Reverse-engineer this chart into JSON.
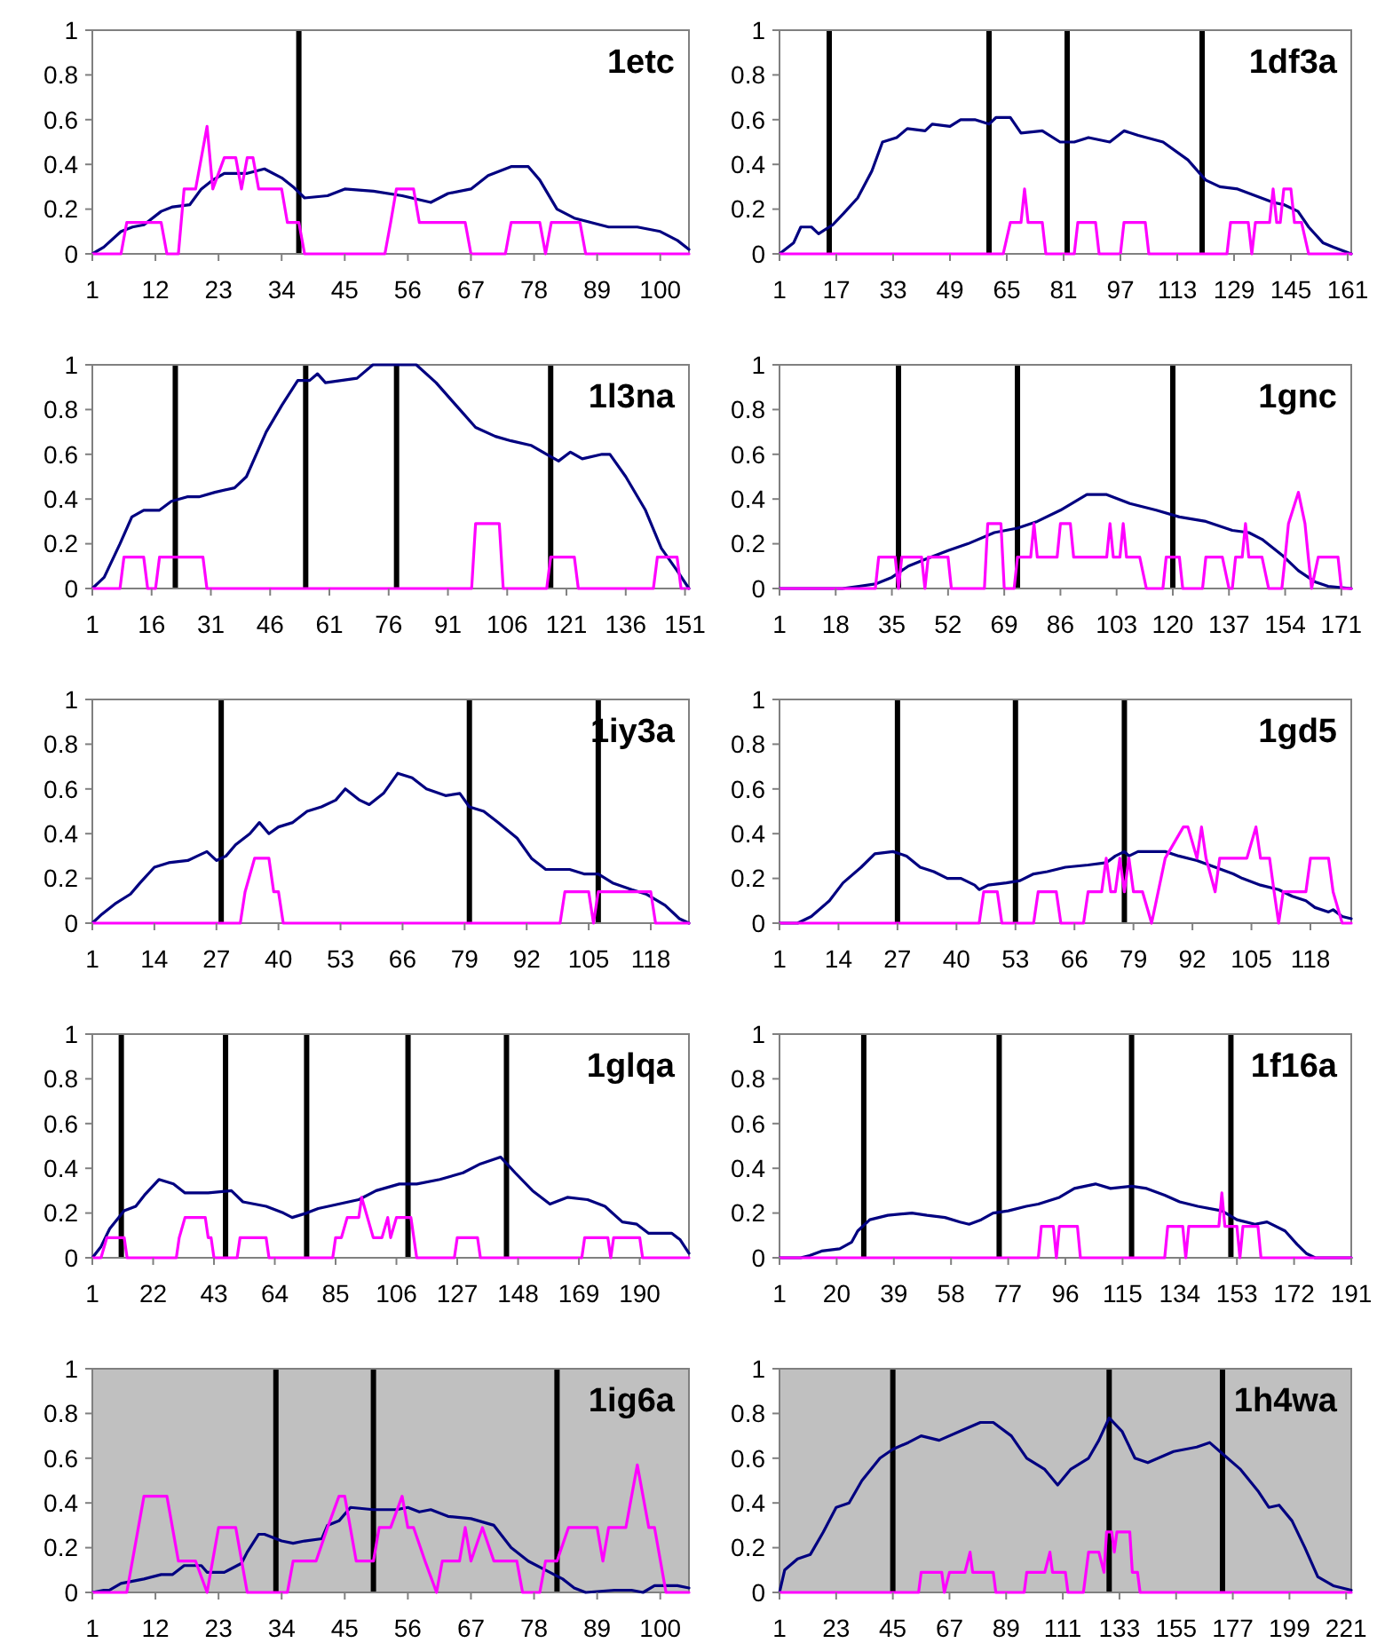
{
  "chart_data": [
    {
      "type": "line",
      "title": "1etc",
      "xlim": [
        1,
        105
      ],
      "xticks": [
        1,
        12,
        23,
        34,
        45,
        56,
        67,
        78,
        89,
        100
      ],
      "ylim": [
        0,
        1
      ],
      "yticks": [
        0,
        0.2,
        0.4,
        0.6,
        0.8,
        1
      ],
      "ref_lines": [
        {
          "axis": "x",
          "value": 37,
          "color": "#000000"
        }
      ],
      "series": [
        {
          "color": "#000080",
          "x": [
            1,
            3,
            6,
            8,
            10,
            13,
            15,
            18,
            20,
            22,
            24,
            28,
            31,
            34,
            36,
            38,
            42,
            45,
            50,
            55,
            60,
            63,
            67,
            70,
            74,
            77,
            79,
            82,
            85,
            88,
            91,
            96,
            100,
            103,
            105
          ],
          "values": [
            0,
            0.03,
            0.1,
            0.12,
            0.13,
            0.19,
            0.21,
            0.22,
            0.29,
            0.33,
            0.36,
            0.36,
            0.38,
            0.34,
            0.3,
            0.25,
            0.26,
            0.29,
            0.28,
            0.26,
            0.23,
            0.27,
            0.29,
            0.35,
            0.39,
            0.39,
            0.33,
            0.2,
            0.16,
            0.14,
            0.12,
            0.12,
            0.1,
            0.06,
            0.02
          ]
        },
        {
          "color": "#ff00ff",
          "x": [
            1,
            6,
            7,
            13,
            14,
            16,
            17,
            19,
            21,
            22,
            24,
            26,
            27,
            28,
            29,
            30,
            34,
            35,
            37,
            38,
            52,
            53,
            54,
            57,
            58,
            66,
            67,
            73,
            74,
            79,
            80,
            81,
            86,
            87,
            105
          ],
          "values": [
            0,
            0,
            0.14,
            0.14,
            0,
            0,
            0.29,
            0.29,
            0.57,
            0.29,
            0.43,
            0.43,
            0.29,
            0.43,
            0.43,
            0.29,
            0.29,
            0.14,
            0.14,
            0,
            0,
            0.14,
            0.29,
            0.29,
            0.14,
            0.14,
            0,
            0,
            0.14,
            0.14,
            0,
            0.14,
            0.14,
            0,
            0
          ]
        }
      ]
    },
    {
      "type": "line",
      "title": "1df3a",
      "xlim": [
        1,
        162
      ],
      "xticks": [
        1,
        17,
        33,
        49,
        65,
        81,
        97,
        113,
        129,
        145,
        161
      ],
      "ylim": [
        0,
        1
      ],
      "yticks": [
        0,
        0.2,
        0.4,
        0.6,
        0.8,
        1
      ],
      "ref_lines": [
        {
          "axis": "x",
          "value": 15,
          "color": "#000000"
        },
        {
          "axis": "x",
          "value": 60,
          "color": "#000000"
        },
        {
          "axis": "x",
          "value": 82,
          "color": "#000000"
        },
        {
          "axis": "x",
          "value": 120,
          "color": "#000000"
        }
      ],
      "series": [
        {
          "color": "#000080",
          "x": [
            1,
            5,
            7,
            10,
            12,
            16,
            19,
            23,
            27,
            30,
            34,
            37,
            42,
            44,
            49,
            52,
            56,
            60,
            62,
            66,
            69,
            75,
            80,
            84,
            88,
            94,
            98,
            102,
            109,
            116,
            121,
            125,
            130,
            135,
            140,
            143,
            147,
            150,
            154,
            157,
            162
          ],
          "values": [
            0,
            0.05,
            0.12,
            0.12,
            0.09,
            0.13,
            0.18,
            0.25,
            0.37,
            0.5,
            0.52,
            0.56,
            0.55,
            0.58,
            0.57,
            0.6,
            0.6,
            0.58,
            0.61,
            0.61,
            0.54,
            0.55,
            0.5,
            0.5,
            0.52,
            0.5,
            0.55,
            0.53,
            0.5,
            0.42,
            0.33,
            0.3,
            0.29,
            0.26,
            0.23,
            0.22,
            0.19,
            0.12,
            0.05,
            0.03,
            0
          ]
        },
        {
          "color": "#ff00ff",
          "x": [
            1,
            64,
            66,
            69,
            70,
            71,
            75,
            76,
            84,
            85,
            90,
            91,
            97,
            98,
            104,
            105,
            127,
            128,
            133,
            134,
            135,
            139,
            140,
            141,
            142,
            143,
            145,
            146,
            148,
            150,
            162
          ],
          "values": [
            0,
            0,
            0.14,
            0.14,
            0.29,
            0.14,
            0.14,
            0,
            0,
            0.14,
            0.14,
            0,
            0,
            0.14,
            0.14,
            0,
            0,
            0.14,
            0.14,
            0,
            0.14,
            0.14,
            0.29,
            0.14,
            0.14,
            0.29,
            0.29,
            0.14,
            0.14,
            0,
            0
          ]
        }
      ]
    },
    {
      "type": "line",
      "title": "1l3na",
      "xlim": [
        1,
        152
      ],
      "xticks": [
        1,
        16,
        31,
        46,
        61,
        76,
        91,
        106,
        121,
        136,
        151
      ],
      "ylim": [
        0,
        1
      ],
      "yticks": [
        0,
        0.2,
        0.4,
        0.6,
        0.8,
        1
      ],
      "ref_lines": [
        {
          "axis": "x",
          "value": 22,
          "color": "#000000"
        },
        {
          "axis": "x",
          "value": 55,
          "color": "#000000"
        },
        {
          "axis": "x",
          "value": 78,
          "color": "#000000"
        },
        {
          "axis": "x",
          "value": 117,
          "color": "#000000"
        }
      ],
      "series": [
        {
          "color": "#000080",
          "x": [
            1,
            4,
            8,
            11,
            14,
            18,
            21,
            25,
            28,
            32,
            37,
            40,
            45,
            49,
            53,
            56,
            58,
            60,
            64,
            68,
            72,
            83,
            88,
            94,
            98,
            103,
            107,
            112,
            116,
            119,
            122,
            125,
            130,
            132,
            136,
            141,
            145,
            149,
            152
          ],
          "values": [
            0,
            0.05,
            0.2,
            0.32,
            0.35,
            0.35,
            0.39,
            0.41,
            0.41,
            0.43,
            0.45,
            0.5,
            0.7,
            0.82,
            0.93,
            0.93,
            0.96,
            0.92,
            0.93,
            0.94,
            1,
            1,
            0.92,
            0.8,
            0.72,
            0.68,
            0.66,
            0.64,
            0.6,
            0.57,
            0.61,
            0.58,
            0.6,
            0.6,
            0.5,
            0.35,
            0.18,
            0.08,
            0
          ]
        },
        {
          "color": "#ff00ff",
          "x": [
            1,
            8,
            9,
            14,
            15,
            17,
            18,
            29,
            30,
            97,
            98,
            104,
            105,
            116,
            117,
            123,
            124,
            143,
            144,
            149,
            150,
            152
          ],
          "values": [
            0,
            0,
            0.14,
            0.14,
            0,
            0,
            0.14,
            0.14,
            0,
            0,
            0.29,
            0.29,
            0,
            0,
            0.14,
            0.14,
            0,
            0,
            0.14,
            0.14,
            0,
            0
          ]
        }
      ]
    },
    {
      "type": "line",
      "title": "1gnc",
      "xlim": [
        1,
        174
      ],
      "xticks": [
        1,
        18,
        35,
        52,
        69,
        86,
        103,
        120,
        137,
        154,
        171
      ],
      "ylim": [
        0,
        1
      ],
      "yticks": [
        0,
        0.2,
        0.4,
        0.6,
        0.8,
        1
      ],
      "ref_lines": [
        {
          "axis": "x",
          "value": 37,
          "color": "#000000"
        },
        {
          "axis": "x",
          "value": 73,
          "color": "#000000"
        },
        {
          "axis": "x",
          "value": 120,
          "color": "#000000"
        }
      ],
      "series": [
        {
          "color": "#000080",
          "x": [
            1,
            20,
            25,
            30,
            35,
            40,
            45,
            52,
            58,
            66,
            73,
            79,
            86,
            94,
            100,
            107,
            115,
            122,
            130,
            138,
            143,
            147,
            153,
            158,
            163,
            167,
            174
          ],
          "values": [
            0,
            0,
            0.01,
            0.02,
            0.05,
            0.1,
            0.13,
            0.17,
            0.2,
            0.25,
            0.27,
            0.3,
            0.35,
            0.42,
            0.42,
            0.38,
            0.35,
            0.32,
            0.3,
            0.26,
            0.25,
            0.22,
            0.15,
            0.08,
            0.03,
            0.01,
            0
          ]
        },
        {
          "color": "#ff00ff",
          "x": [
            1,
            30,
            31,
            36,
            37,
            38,
            44,
            45,
            46,
            52,
            53,
            63,
            64,
            68,
            69,
            72,
            73,
            77,
            78,
            79,
            85,
            86,
            89,
            90,
            100,
            101,
            102,
            104,
            105,
            106,
            110,
            112,
            117,
            118,
            122,
            123,
            129,
            130,
            135,
            137,
            138,
            139,
            141,
            142,
            143,
            147,
            149,
            153,
            154,
            155,
            158,
            160,
            161,
            162,
            164,
            170,
            171,
            174
          ],
          "values": [
            0,
            0,
            0.14,
            0.14,
            0,
            0.14,
            0.14,
            0,
            0.14,
            0.14,
            0,
            0,
            0.29,
            0.29,
            0,
            0,
            0.14,
            0.14,
            0.29,
            0.14,
            0.14,
            0.29,
            0.29,
            0.14,
            0.14,
            0.29,
            0.14,
            0.14,
            0.29,
            0.14,
            0.14,
            0,
            0,
            0.14,
            0.14,
            0,
            0,
            0.14,
            0.14,
            0,
            0,
            0.14,
            0.14,
            0.29,
            0.14,
            0.14,
            0,
            0,
            0.14,
            0.29,
            0.43,
            0.29,
            0.14,
            0,
            0.14,
            0.14,
            0,
            0
          ]
        }
      ]
    },
    {
      "type": "line",
      "title": "1iy3a",
      "xlim": [
        1,
        126
      ],
      "xticks": [
        1,
        14,
        27,
        40,
        53,
        66,
        79,
        92,
        105,
        118
      ],
      "ylim": [
        0,
        1
      ],
      "yticks": [
        0,
        0.2,
        0.4,
        0.6,
        0.8,
        1
      ],
      "ref_lines": [
        {
          "axis": "x",
          "value": 28,
          "color": "#000000"
        },
        {
          "axis": "x",
          "value": 80,
          "color": "#000000"
        },
        {
          "axis": "x",
          "value": 107,
          "color": "#000000"
        }
      ],
      "series": [
        {
          "color": "#000080",
          "x": [
            1,
            3,
            6,
            9,
            11,
            14,
            17,
            21,
            23,
            25,
            27,
            29,
            31,
            34,
            36,
            38,
            40,
            43,
            46,
            49,
            52,
            54,
            57,
            59,
            62,
            65,
            68,
            71,
            75,
            78,
            80,
            83,
            86,
            90,
            93,
            96,
            101,
            104,
            107,
            110,
            114,
            117,
            121,
            124,
            126
          ],
          "values": [
            0,
            0.04,
            0.09,
            0.13,
            0.18,
            0.25,
            0.27,
            0.28,
            0.3,
            0.32,
            0.28,
            0.3,
            0.35,
            0.4,
            0.45,
            0.4,
            0.43,
            0.45,
            0.5,
            0.52,
            0.55,
            0.6,
            0.55,
            0.53,
            0.58,
            0.67,
            0.65,
            0.6,
            0.57,
            0.58,
            0.52,
            0.5,
            0.45,
            0.38,
            0.29,
            0.24,
            0.24,
            0.22,
            0.22,
            0.18,
            0.15,
            0.13,
            0.08,
            0.02,
            0
          ]
        },
        {
          "color": "#ff00ff",
          "x": [
            1,
            32,
            33,
            35,
            38,
            39,
            40,
            41,
            99,
            100,
            105,
            106,
            107,
            118,
            119,
            126
          ],
          "values": [
            0,
            0,
            0.14,
            0.29,
            0.29,
            0.14,
            0.14,
            0,
            0,
            0.14,
            0.14,
            0,
            0.14,
            0.14,
            0,
            0
          ]
        }
      ]
    },
    {
      "type": "line",
      "title": "1gd5",
      "xlim": [
        1,
        127
      ],
      "xticks": [
        1,
        14,
        27,
        40,
        53,
        66,
        79,
        92,
        105,
        118
      ],
      "ylim": [
        0,
        1
      ],
      "yticks": [
        0,
        0.2,
        0.4,
        0.6,
        0.8,
        1
      ],
      "ref_lines": [
        {
          "axis": "x",
          "value": 27,
          "color": "#000000"
        },
        {
          "axis": "x",
          "value": 53,
          "color": "#000000"
        },
        {
          "axis": "x",
          "value": 77,
          "color": "#000000"
        }
      ],
      "series": [
        {
          "color": "#000080",
          "x": [
            1,
            5,
            8,
            12,
            15,
            19,
            22,
            26,
            29,
            32,
            35,
            38,
            41,
            44,
            45,
            47,
            51,
            54,
            57,
            60,
            64,
            69,
            73,
            75,
            77,
            78,
            80,
            86,
            89,
            93,
            97,
            101,
            103,
            107,
            111,
            114,
            117,
            119,
            122,
            123,
            125,
            127
          ],
          "values": [
            0,
            0,
            0.03,
            0.1,
            0.18,
            0.25,
            0.31,
            0.32,
            0.3,
            0.25,
            0.23,
            0.2,
            0.2,
            0.17,
            0.15,
            0.17,
            0.18,
            0.19,
            0.22,
            0.23,
            0.25,
            0.26,
            0.27,
            0.3,
            0.32,
            0.3,
            0.32,
            0.32,
            0.3,
            0.28,
            0.25,
            0.22,
            0.2,
            0.17,
            0.15,
            0.12,
            0.1,
            0.07,
            0.05,
            0.06,
            0.03,
            0.02
          ]
        },
        {
          "color": "#ff00ff",
          "x": [
            1,
            45,
            46,
            49,
            50,
            57,
            58,
            62,
            63,
            68,
            69,
            72,
            73,
            74,
            75,
            76,
            77,
            78,
            79,
            81,
            83,
            86,
            90,
            91,
            93,
            94,
            95,
            97,
            98,
            104,
            106,
            107,
            109,
            110,
            111,
            112,
            117,
            118,
            122,
            123,
            125,
            127
          ],
          "values": [
            0,
            0,
            0.14,
            0.14,
            0,
            0,
            0.14,
            0.14,
            0,
            0,
            0.14,
            0.14,
            0.29,
            0.14,
            0.14,
            0.29,
            0.14,
            0.29,
            0.14,
            0.14,
            0,
            0.29,
            0.43,
            0.43,
            0.29,
            0.43,
            0.29,
            0.14,
            0.29,
            0.29,
            0.43,
            0.29,
            0.29,
            0.14,
            0,
            0.14,
            0.14,
            0.29,
            0.29,
            0.14,
            0,
            0
          ]
        }
      ]
    },
    {
      "type": "line",
      "title": "1glqa",
      "xlim": [
        1,
        207
      ],
      "xticks": [
        1,
        22,
        43,
        64,
        85,
        106,
        127,
        148,
        169,
        190
      ],
      "ylim": [
        0,
        1
      ],
      "yticks": [
        0,
        0.2,
        0.4,
        0.6,
        0.8,
        1
      ],
      "ref_lines": [
        {
          "axis": "x",
          "value": 11,
          "color": "#000000"
        },
        {
          "axis": "x",
          "value": 47,
          "color": "#000000"
        },
        {
          "axis": "x",
          "value": 75,
          "color": "#000000"
        },
        {
          "axis": "x",
          "value": 110,
          "color": "#000000"
        },
        {
          "axis": "x",
          "value": 144,
          "color": "#000000"
        }
      ],
      "series": [
        {
          "color": "#000080",
          "x": [
            1,
            4,
            7,
            12,
            16,
            19,
            24,
            29,
            33,
            41,
            49,
            53,
            61,
            67,
            70,
            75,
            79,
            86,
            93,
            99,
            107,
            113,
            121,
            129,
            135,
            142,
            147,
            153,
            159,
            165,
            172,
            178,
            184,
            189,
            193,
            201,
            204,
            207
          ],
          "values": [
            0,
            0.05,
            0.13,
            0.21,
            0.23,
            0.28,
            0.35,
            0.33,
            0.29,
            0.29,
            0.3,
            0.25,
            0.23,
            0.2,
            0.18,
            0.2,
            0.22,
            0.24,
            0.26,
            0.3,
            0.33,
            0.33,
            0.35,
            0.38,
            0.42,
            0.45,
            0.38,
            0.3,
            0.24,
            0.27,
            0.26,
            0.23,
            0.16,
            0.15,
            0.11,
            0.11,
            0.08,
            0.02
          ]
        },
        {
          "color": "#ff00ff",
          "x": [
            1,
            4,
            6,
            12,
            13,
            30,
            31,
            33,
            40,
            41,
            42,
            43,
            51,
            52,
            61,
            62,
            84,
            85,
            87,
            89,
            93,
            94,
            96,
            98,
            101,
            103,
            104,
            106,
            111,
            113,
            126,
            127,
            134,
            135,
            170,
            171,
            179,
            180,
            181,
            190,
            191,
            207
          ],
          "values": [
            0,
            0,
            0.09,
            0.09,
            0,
            0,
            0.09,
            0.18,
            0.18,
            0.09,
            0.09,
            0,
            0,
            0.09,
            0.09,
            0,
            0,
            0.09,
            0.09,
            0.18,
            0.18,
            0.27,
            0.18,
            0.09,
            0.09,
            0.18,
            0.09,
            0.18,
            0.18,
            0,
            0,
            0.09,
            0.09,
            0,
            0,
            0.09,
            0.09,
            0,
            0.09,
            0.09,
            0,
            0
          ]
        }
      ]
    },
    {
      "type": "line",
      "title": "1f16a",
      "xlim": [
        1,
        191
      ],
      "xticks": [
        1,
        20,
        39,
        58,
        77,
        96,
        115,
        134,
        153,
        172,
        191
      ],
      "ylim": [
        0,
        1
      ],
      "yticks": [
        0,
        0.2,
        0.4,
        0.6,
        0.8,
        1
      ],
      "ref_lines": [
        {
          "axis": "x",
          "value": 29,
          "color": "#000000"
        },
        {
          "axis": "x",
          "value": 74,
          "color": "#000000"
        },
        {
          "axis": "x",
          "value": 118,
          "color": "#000000"
        },
        {
          "axis": "x",
          "value": 151,
          "color": "#000000"
        }
      ],
      "series": [
        {
          "color": "#000080",
          "x": [
            1,
            8,
            11,
            15,
            21,
            25,
            27,
            31,
            37,
            45,
            50,
            56,
            61,
            64,
            68,
            72,
            77,
            83,
            87,
            94,
            99,
            106,
            111,
            118,
            123,
            129,
            134,
            140,
            148,
            153,
            159,
            163,
            169,
            173,
            176,
            179,
            191
          ],
          "values": [
            0,
            0,
            0.01,
            0.03,
            0.04,
            0.07,
            0.12,
            0.17,
            0.19,
            0.2,
            0.19,
            0.18,
            0.16,
            0.15,
            0.17,
            0.2,
            0.21,
            0.23,
            0.24,
            0.27,
            0.31,
            0.33,
            0.31,
            0.32,
            0.31,
            0.28,
            0.25,
            0.23,
            0.21,
            0.17,
            0.15,
            0.16,
            0.12,
            0.06,
            0.02,
            0,
            0
          ]
        },
        {
          "color": "#ff00ff",
          "x": [
            1,
            87,
            88,
            92,
            93,
            94,
            100,
            101,
            129,
            130,
            135,
            136,
            137,
            147,
            148,
            149,
            153,
            154,
            155,
            160,
            161,
            191
          ],
          "values": [
            0,
            0,
            0.14,
            0.14,
            0,
            0.14,
            0.14,
            0,
            0,
            0.14,
            0.14,
            0,
            0.14,
            0.14,
            0.29,
            0.14,
            0.14,
            0,
            0.14,
            0.14,
            0,
            0
          ]
        }
      ]
    },
    {
      "type": "line",
      "title": "1ig6a",
      "xlim": [
        1,
        105
      ],
      "xticks": [
        1,
        12,
        23,
        34,
        45,
        56,
        67,
        78,
        89,
        100
      ],
      "ylim": [
        0,
        1
      ],
      "yticks": [
        0,
        0.2,
        0.4,
        0.6,
        0.8,
        1
      ],
      "bands": [
        {
          "axis": "x",
          "from": 1,
          "to": 105,
          "color": "#c0c0c0"
        }
      ],
      "ref_lines": [
        {
          "axis": "x",
          "value": 33,
          "color": "#000000"
        },
        {
          "axis": "x",
          "value": 50,
          "color": "#000000"
        },
        {
          "axis": "x",
          "value": 82,
          "color": "#000000"
        }
      ],
      "series": [
        {
          "color": "#000080",
          "x": [
            1,
            3,
            4,
            6,
            8,
            10,
            13,
            15,
            17,
            20,
            21,
            24,
            27,
            28,
            30,
            31,
            34,
            36,
            38,
            41,
            42,
            44,
            46,
            50,
            54,
            56,
            58,
            60,
            63,
            67,
            71,
            74,
            77,
            80,
            83,
            85,
            87,
            92,
            95,
            97,
            99,
            103,
            105
          ],
          "values": [
            0,
            0.01,
            0.01,
            0.04,
            0.05,
            0.06,
            0.08,
            0.08,
            0.12,
            0.12,
            0.09,
            0.09,
            0.13,
            0.18,
            0.26,
            0.26,
            0.23,
            0.22,
            0.23,
            0.24,
            0.3,
            0.32,
            0.38,
            0.37,
            0.37,
            0.38,
            0.36,
            0.37,
            0.34,
            0.33,
            0.3,
            0.2,
            0.14,
            0.1,
            0.06,
            0.02,
            0,
            0.01,
            0.01,
            0,
            0.03,
            0.03,
            0.02
          ]
        },
        {
          "color": "#ff00ff",
          "x": [
            1,
            7,
            10,
            14,
            16,
            19,
            21,
            23,
            26,
            28,
            35,
            36,
            40,
            42,
            44,
            45,
            47,
            50,
            51,
            53,
            55,
            56,
            57,
            59,
            61,
            62,
            65,
            66,
            67,
            69,
            71,
            75,
            76,
            79,
            80,
            82,
            84,
            89,
            90,
            91,
            94,
            96,
            98,
            99,
            101,
            105
          ],
          "values": [
            0,
            0,
            0.43,
            0.43,
            0.14,
            0.14,
            0,
            0.29,
            0.29,
            0,
            0,
            0.14,
            0.14,
            0.29,
            0.43,
            0.43,
            0.14,
            0.14,
            0.29,
            0.29,
            0.43,
            0.29,
            0.29,
            0.14,
            0,
            0.14,
            0.14,
            0.29,
            0.14,
            0.29,
            0.14,
            0.14,
            0,
            0,
            0.14,
            0.14,
            0.29,
            0.29,
            0.14,
            0.29,
            0.29,
            0.57,
            0.29,
            0.29,
            0,
            0
          ]
        }
      ]
    },
    {
      "type": "line",
      "title": "1h4wa",
      "xlim": [
        1,
        223
      ],
      "xticks": [
        1,
        23,
        45,
        67,
        89,
        111,
        133,
        155,
        177,
        199,
        221
      ],
      "ylim": [
        0,
        1
      ],
      "yticks": [
        0,
        0.2,
        0.4,
        0.6,
        0.8,
        1
      ],
      "bands": [
        {
          "axis": "x",
          "from": 1,
          "to": 223,
          "color": "#c0c0c0"
        }
      ],
      "ref_lines": [
        {
          "axis": "x",
          "value": 45,
          "color": "#000000"
        },
        {
          "axis": "x",
          "value": 129,
          "color": "#000000"
        },
        {
          "axis": "x",
          "value": 173,
          "color": "#000000"
        }
      ],
      "series": [
        {
          "color": "#000080",
          "x": [
            1,
            3,
            8,
            13,
            18,
            23,
            28,
            33,
            40,
            45,
            51,
            56,
            63,
            71,
            79,
            84,
            91,
            97,
            104,
            109,
            114,
            121,
            125,
            129,
            134,
            139,
            144,
            154,
            163,
            168,
            173,
            180,
            187,
            191,
            195,
            200,
            205,
            210,
            216,
            223
          ],
          "values": [
            0,
            0.1,
            0.15,
            0.17,
            0.27,
            0.38,
            0.4,
            0.5,
            0.6,
            0.64,
            0.67,
            0.7,
            0.68,
            0.72,
            0.76,
            0.76,
            0.7,
            0.6,
            0.55,
            0.48,
            0.55,
            0.6,
            0.68,
            0.78,
            0.72,
            0.6,
            0.58,
            0.63,
            0.65,
            0.67,
            0.62,
            0.55,
            0.45,
            0.38,
            0.39,
            0.32,
            0.2,
            0.07,
            0.03,
            0.01
          ]
        },
        {
          "color": "#ff00ff",
          "x": [
            1,
            55,
            56,
            64,
            65,
            67,
            73,
            75,
            76,
            84,
            85,
            96,
            97,
            104,
            106,
            107,
            112,
            113,
            119,
            120,
            121,
            125,
            127,
            128,
            130,
            131,
            132,
            137,
            138,
            140,
            141,
            223
          ],
          "values": [
            0,
            0,
            0.09,
            0.09,
            0,
            0.09,
            0.09,
            0.18,
            0.09,
            0.09,
            0,
            0,
            0.09,
            0.09,
            0.18,
            0.09,
            0.09,
            0,
            0,
            0.09,
            0.18,
            0.18,
            0.09,
            0.27,
            0.27,
            0.18,
            0.27,
            0.27,
            0.09,
            0.09,
            0,
            0
          ]
        }
      ]
    }
  ]
}
